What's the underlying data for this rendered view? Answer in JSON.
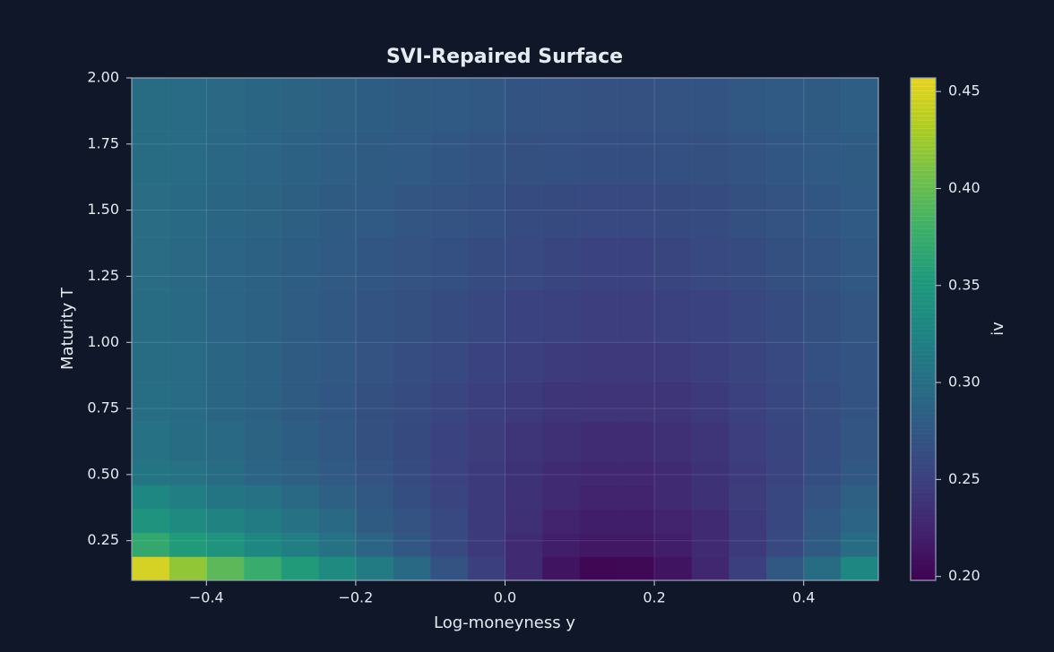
{
  "chart_data": {
    "type": "heatmap",
    "title": "SVI-Repaired Surface",
    "x_label": "Log-moneyness y",
    "y_label": "Maturity T",
    "colorbar_label": "iv",
    "colormap": "viridis",
    "grid": true,
    "xlim": [
      -0.5,
      0.5
    ],
    "ylim": [
      0.1,
      2.0
    ],
    "zlim": [
      0.198,
      0.457
    ],
    "xticks": [
      {
        "value": -0.4,
        "label": "−0.4"
      },
      {
        "value": -0.2,
        "label": "−0.2"
      },
      {
        "value": 0,
        "label": "0.0"
      },
      0.2,
      0.4
    ],
    "yticks": [
      0.25,
      {
        "value": 0.5,
        "label": "0.50"
      },
      0.75,
      {
        "value": 1.0,
        "label": "1.00"
      },
      1.25,
      {
        "value": 1.5,
        "label": "1.50"
      },
      1.75,
      {
        "value": 2.0,
        "label": "2.00"
      }
    ],
    "zticks": [
      {
        "value": 0.2,
        "label": "0.20"
      },
      0.25,
      {
        "value": 0.3,
        "label": "0.30"
      },
      0.35,
      {
        "value": 0.4,
        "label": "0.40"
      },
      0.45
    ],
    "xbins": [
      -0.5,
      -0.45,
      -0.4,
      -0.35,
      -0.3,
      -0.25,
      -0.2,
      -0.15,
      -0.1,
      -0.05,
      0,
      0.05,
      0.1,
      0.15,
      0.2,
      0.25,
      0.3,
      0.35,
      0.4,
      0.45,
      0.5
    ],
    "ybins": [
      0.1,
      0.19,
      0.28,
      0.37,
      0.46,
      0.55,
      0.7,
      0.85,
      1.0,
      1.2,
      1.4,
      1.6,
      1.8,
      2.0
    ],
    "values": [
      [
        0.45,
        0.42,
        0.395,
        0.375,
        0.355,
        0.335,
        0.315,
        0.295,
        0.27,
        0.25,
        0.23,
        0.212,
        0.202,
        0.203,
        0.212,
        0.228,
        0.25,
        0.275,
        0.3,
        0.33
      ],
      [
        0.37,
        0.355,
        0.345,
        0.33,
        0.32,
        0.305,
        0.29,
        0.275,
        0.26,
        0.245,
        0.23,
        0.22,
        0.215,
        0.215,
        0.22,
        0.23,
        0.245,
        0.26,
        0.28,
        0.3
      ],
      [
        0.345,
        0.335,
        0.325,
        0.315,
        0.305,
        0.295,
        0.28,
        0.27,
        0.26,
        0.245,
        0.235,
        0.225,
        0.22,
        0.22,
        0.225,
        0.232,
        0.245,
        0.258,
        0.275,
        0.29
      ],
      [
        0.33,
        0.32,
        0.31,
        0.305,
        0.295,
        0.285,
        0.275,
        0.265,
        0.255,
        0.245,
        0.237,
        0.23,
        0.225,
        0.225,
        0.23,
        0.237,
        0.247,
        0.258,
        0.27,
        0.285
      ],
      [
        0.31,
        0.305,
        0.3,
        0.29,
        0.285,
        0.278,
        0.27,
        0.262,
        0.253,
        0.245,
        0.238,
        0.232,
        0.228,
        0.228,
        0.232,
        0.238,
        0.246,
        0.255,
        0.265,
        0.275
      ],
      [
        0.305,
        0.3,
        0.295,
        0.288,
        0.282,
        0.275,
        0.268,
        0.261,
        0.254,
        0.247,
        0.241,
        0.236,
        0.233,
        0.233,
        0.236,
        0.241,
        0.248,
        0.256,
        0.264,
        0.273
      ],
      [
        0.302,
        0.297,
        0.292,
        0.286,
        0.28,
        0.274,
        0.268,
        0.262,
        0.256,
        0.25,
        0.245,
        0.241,
        0.239,
        0.239,
        0.241,
        0.245,
        0.251,
        0.257,
        0.264,
        0.271
      ],
      [
        0.3,
        0.296,
        0.291,
        0.286,
        0.28,
        0.275,
        0.27,
        0.264,
        0.259,
        0.254,
        0.25,
        0.246,
        0.244,
        0.244,
        0.246,
        0.25,
        0.255,
        0.26,
        0.266,
        0.272
      ],
      [
        0.299,
        0.295,
        0.29,
        0.286,
        0.281,
        0.276,
        0.272,
        0.267,
        0.262,
        0.258,
        0.254,
        0.251,
        0.249,
        0.249,
        0.251,
        0.254,
        0.258,
        0.263,
        0.268,
        0.273
      ],
      [
        0.298,
        0.294,
        0.29,
        0.286,
        0.282,
        0.278,
        0.274,
        0.27,
        0.266,
        0.262,
        0.259,
        0.256,
        0.254,
        0.254,
        0.256,
        0.259,
        0.263,
        0.267,
        0.271,
        0.276
      ],
      [
        0.298,
        0.295,
        0.291,
        0.288,
        0.284,
        0.28,
        0.277,
        0.273,
        0.27,
        0.266,
        0.263,
        0.261,
        0.259,
        0.259,
        0.261,
        0.263,
        0.267,
        0.27,
        0.274,
        0.278
      ],
      [
        0.299,
        0.296,
        0.293,
        0.29,
        0.286,
        0.283,
        0.28,
        0.277,
        0.274,
        0.271,
        0.268,
        0.266,
        0.265,
        0.265,
        0.266,
        0.268,
        0.271,
        0.274,
        0.277,
        0.28
      ],
      [
        0.3,
        0.297,
        0.294,
        0.291,
        0.288,
        0.285,
        0.282,
        0.28,
        0.277,
        0.275,
        0.272,
        0.27,
        0.269,
        0.269,
        0.27,
        0.272,
        0.275,
        0.277,
        0.28,
        0.283
      ]
    ]
  }
}
